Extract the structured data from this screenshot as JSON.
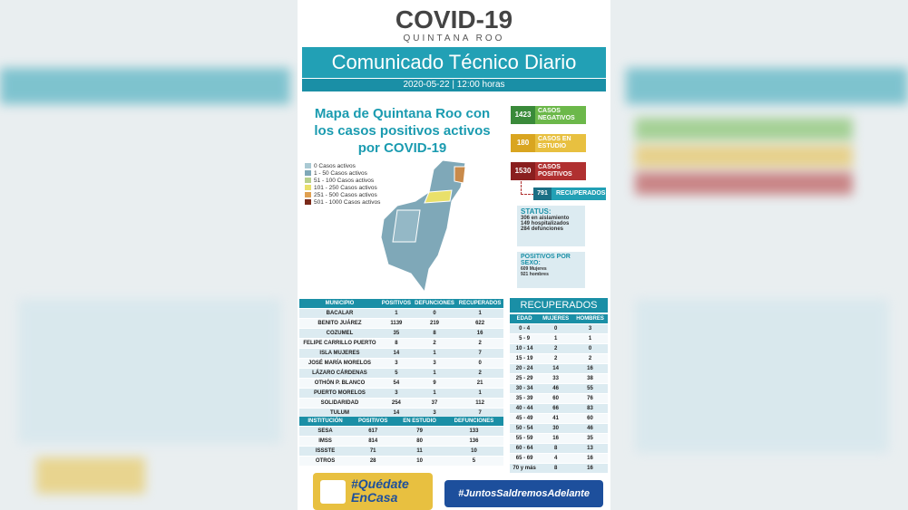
{
  "header": {
    "title": "COVID-19",
    "subtitle": "QUINTANA ROO",
    "banner": "Comunicado Técnico Diario",
    "date": "2020-05-22 | 12:00 horas"
  },
  "map": {
    "title": "Mapa de Quintana Roo con los casos positivos activos por COVID-19",
    "legend": [
      "0 Casos activos",
      "1 - 50 Casos activos",
      "51 - 100 Casos activos",
      "101 - 250 Casos activos",
      "251 - 500 Casos activos",
      "501 - 1000 Casos activos"
    ]
  },
  "stats": [
    {
      "value": 1423,
      "label": "CASOS NEGATIVOS"
    },
    {
      "value": 180,
      "label": "CASOS EN ESTUDIO"
    },
    {
      "value": 1530,
      "label": "CASOS POSITIVOS"
    },
    {
      "value": 791,
      "label": "RECUPERADOS"
    }
  ],
  "status": {
    "title": "STATUS:",
    "lines": [
      "306 en aislamiento",
      "149 hospitalizados",
      "284 defunciones"
    ]
  },
  "sexo": {
    "title": "POSITIVOS POR SEXO:",
    "lines": [
      "609 Mujeres",
      "921 hombres"
    ]
  },
  "municipios": {
    "header": [
      "MUNICIPIO",
      "POSITIVOS",
      "DEFUNCIONES",
      "RECUPERADOS"
    ],
    "rows": [
      [
        "BACALAR",
        1,
        0,
        1
      ],
      [
        "BENITO JUÁREZ",
        1139,
        219,
        622
      ],
      [
        "COZUMEL",
        35,
        8,
        16
      ],
      [
        "FELIPE CARRILLO PUERTO",
        8,
        2,
        2
      ],
      [
        "ISLA MUJERES",
        14,
        1,
        7
      ],
      [
        "JOSÉ MARÍA MORELOS",
        3,
        3,
        0
      ],
      [
        "LÁZARO CÁRDENAS",
        5,
        1,
        2
      ],
      [
        "OTHÓN P. BLANCO",
        54,
        9,
        21
      ],
      [
        "PUERTO MORELOS",
        3,
        1,
        1
      ],
      [
        "SOLIDARIDAD",
        254,
        37,
        112
      ],
      [
        "TULUM",
        14,
        3,
        7
      ]
    ]
  },
  "instituciones": {
    "header": [
      "INSTITUCIÓN",
      "POSITIVOS",
      "EN ESTUDIO",
      "DEFUNCIONES"
    ],
    "rows": [
      [
        "SESA",
        617,
        79,
        133
      ],
      [
        "IMSS",
        814,
        80,
        136
      ],
      [
        "ISSSTE",
        71,
        11,
        10
      ],
      [
        "OTROS",
        28,
        10,
        5
      ]
    ]
  },
  "recuperados": {
    "title": "RECUPERADOS",
    "header": [
      "EDAD",
      "MUJERES",
      "HOMBRES"
    ],
    "rows": [
      [
        "0 - 4",
        0,
        3
      ],
      [
        "5 - 9",
        1,
        1
      ],
      [
        "10 - 14",
        2,
        0
      ],
      [
        "15 - 19",
        2,
        2
      ],
      [
        "20 - 24",
        14,
        16
      ],
      [
        "25 - 29",
        33,
        38
      ],
      [
        "30 - 34",
        46,
        55
      ],
      [
        "35 - 39",
        60,
        76
      ],
      [
        "40 - 44",
        66,
        83
      ],
      [
        "45 - 49",
        41,
        60
      ],
      [
        "50 - 54",
        30,
        46
      ],
      [
        "55 - 59",
        16,
        35
      ],
      [
        "60 - 64",
        8,
        13
      ],
      [
        "65 - 69",
        4,
        16
      ],
      [
        "70 y más",
        8,
        16
      ]
    ]
  },
  "footer": {
    "left": [
      "#Quédate",
      "EnCasa"
    ],
    "right": "#JuntosSaldremosAdelante"
  }
}
